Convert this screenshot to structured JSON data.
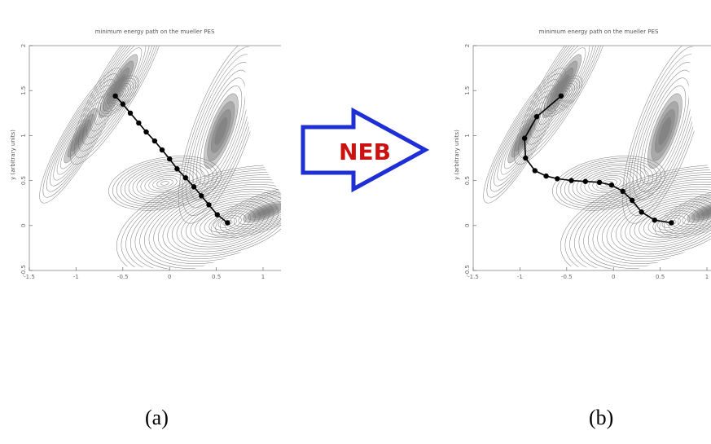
{
  "panels": [
    {
      "id": "a",
      "title": "minimum energy path on the mueller PES",
      "ylabel": "y (arbitrary units)",
      "caption": "(a)",
      "path": [
        [
          -0.58,
          1.44
        ],
        [
          -0.5,
          1.35
        ],
        [
          -0.42,
          1.25
        ],
        [
          -0.33,
          1.14
        ],
        [
          -0.25,
          1.04
        ],
        [
          -0.16,
          0.94
        ],
        [
          -0.08,
          0.84
        ],
        [
          0.0,
          0.74
        ],
        [
          0.08,
          0.63
        ],
        [
          0.17,
          0.53
        ],
        [
          0.26,
          0.43
        ],
        [
          0.34,
          0.33
        ],
        [
          0.42,
          0.23
        ],
        [
          0.51,
          0.12
        ],
        [
          0.62,
          0.03
        ]
      ]
    },
    {
      "id": "b",
      "title": "minimum energy path on the mueller PES",
      "ylabel": "y (arbitrary units)",
      "caption": "(b)",
      "path": [
        [
          -0.56,
          1.44
        ],
        [
          -0.82,
          1.21
        ],
        [
          -0.95,
          0.97
        ],
        [
          -0.94,
          0.75
        ],
        [
          -0.84,
          0.61
        ],
        [
          -0.72,
          0.55
        ],
        [
          -0.6,
          0.52
        ],
        [
          -0.45,
          0.5
        ],
        [
          -0.3,
          0.49
        ],
        [
          -0.15,
          0.48
        ],
        [
          -0.02,
          0.45
        ],
        [
          0.1,
          0.38
        ],
        [
          0.2,
          0.28
        ],
        [
          0.3,
          0.15
        ],
        [
          0.44,
          0.06
        ],
        [
          0.62,
          0.03
        ]
      ]
    }
  ],
  "axes": {
    "xlim": [
      -1.5,
      1.2
    ],
    "ylim": [
      -0.5,
      2.0
    ],
    "xticks": [
      "-1.5",
      "-1",
      "-0.5",
      "0",
      "0.5",
      "1"
    ],
    "yticks": [
      "-0.5",
      "0",
      "0.5",
      "1",
      "1.5",
      "2"
    ]
  },
  "arrow": {
    "label": "NEB",
    "label_color": "#cc1111",
    "outline_color": "#1f2fd6"
  }
}
